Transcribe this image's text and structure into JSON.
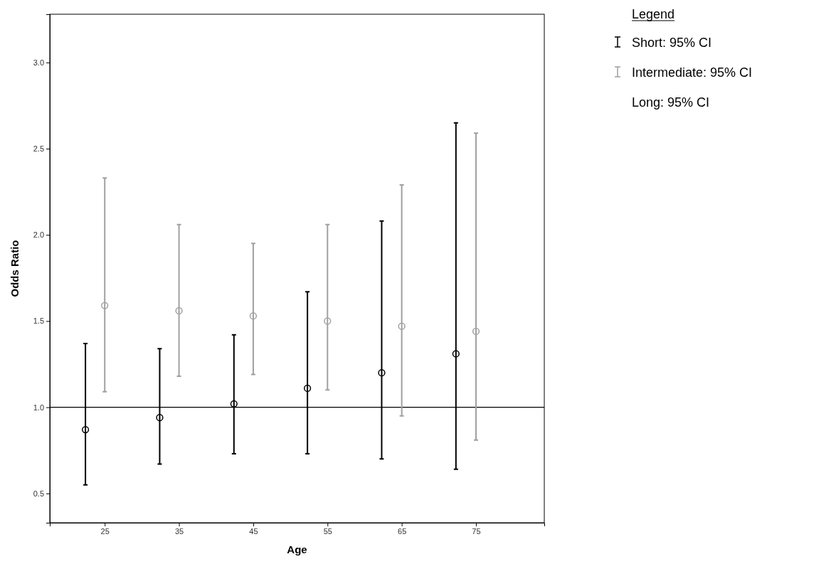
{
  "chart_data": {
    "type": "scatter",
    "xlabel": "Age",
    "ylabel": "Odds Ratio",
    "legend_title": "Legend",
    "legend": "right",
    "marker": "circle",
    "grid": false,
    "xlim": [
      17.6,
      84.2
    ],
    "xticks": [
      25,
      35,
      45,
      55,
      65,
      75
    ],
    "ylim": [
      0.33,
      3.28
    ],
    "yticks": [
      0.5,
      {
        "value": 1,
        "label": "1.0"
      },
      1.5,
      {
        "value": 2,
        "label": "2.0"
      },
      2.5,
      {
        "value": 3,
        "label": "3.0"
      }
    ],
    "annotations": [
      "Long: 95% CI"
    ],
    "ref_lines": [
      {
        "axis": "y",
        "value": 1.0,
        "color": "#000000"
      }
    ],
    "series": [
      {
        "name": "Short: 95% CI",
        "color": "#000000",
        "x": [
          22.4,
          32.4,
          42.4,
          52.3,
          62.3,
          72.3
        ],
        "values": [
          0.87,
          0.94,
          1.02,
          1.11,
          1.2,
          1.31
        ],
        "errors": [
          [
            0.55,
            1.37
          ],
          [
            0.67,
            1.34
          ],
          [
            0.73,
            1.42
          ],
          [
            0.73,
            1.67
          ],
          [
            0.7,
            2.08
          ],
          [
            0.64,
            2.65
          ]
        ]
      },
      {
        "name": "Intermediate: 95% CI",
        "color": "#a0a0a0",
        "x": [
          25,
          35,
          45,
          55,
          65,
          75
        ],
        "values": [
          1.59,
          1.56,
          1.53,
          1.5,
          1.47,
          1.44
        ],
        "errors": [
          [
            1.09,
            2.33
          ],
          [
            1.18,
            2.06
          ],
          [
            1.19,
            1.95
          ],
          [
            1.1,
            2.06
          ],
          [
            0.95,
            2.29
          ],
          [
            0.81,
            2.59
          ]
        ]
      }
    ]
  }
}
